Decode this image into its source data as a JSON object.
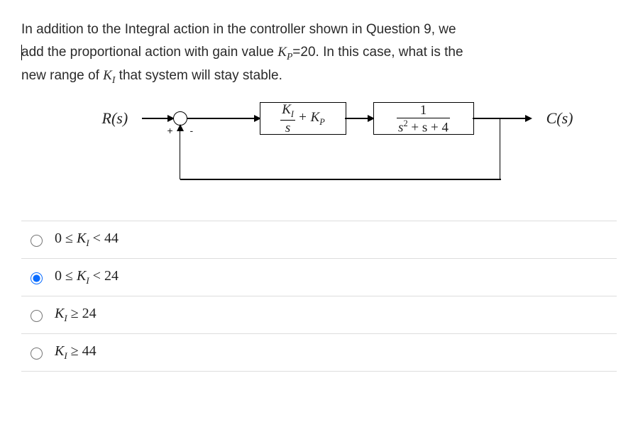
{
  "question": {
    "line1_pre": "In addition to the Integral action in the controller shown in Question 9, we",
    "line2_pre": "add the proportional action with gain value ",
    "kp_sym": "K",
    "kp_sub": "P",
    "kp_eq": "=20. In this case, what is the",
    "line3_pre": "new range of ",
    "ki_sym": "K",
    "ki_sub": "I",
    "line3_post": " that system will stay stable."
  },
  "diagram": {
    "input_label": "R(s)",
    "output_label": "C(s)",
    "sum_plus": "+",
    "sum_minus": "-",
    "block1": {
      "num_K": "K",
      "num_sub": "I",
      "den": "s",
      "plus": "+ K",
      "plus_sub": "P"
    },
    "block2": {
      "num": "1",
      "den_pre": "s",
      "den_sup": "2",
      "den_post": " + s + 4"
    }
  },
  "options": [
    {
      "id": "a",
      "pre": "0 ≤ ",
      "var": "K",
      "sub": "I",
      "post": " < 44",
      "selected": false
    },
    {
      "id": "b",
      "pre": "0 ≤ ",
      "var": "K",
      "sub": "I",
      "post": " < 24",
      "selected": true
    },
    {
      "id": "c",
      "pre": "",
      "var": "K",
      "sub": "I",
      "post": " ≥ 24",
      "selected": false
    },
    {
      "id": "d",
      "pre": "",
      "var": "K",
      "sub": "I",
      "post": " ≥ 44",
      "selected": false
    }
  ],
  "colors": {
    "text": "#2a2a2a",
    "border": "#dddddd",
    "accent": "#0a6cff",
    "line": "#000000",
    "background": "#ffffff"
  }
}
